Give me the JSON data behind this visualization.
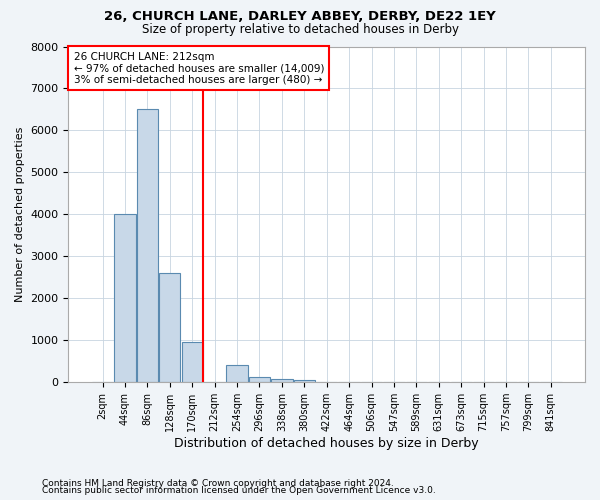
{
  "title1": "26, CHURCH LANE, DARLEY ABBEY, DERBY, DE22 1EY",
  "title2": "Size of property relative to detached houses in Derby",
  "xlabel": "Distribution of detached houses by size in Derby",
  "ylabel": "Number of detached properties",
  "categories": [
    "2sqm",
    "44sqm",
    "86sqm",
    "128sqm",
    "170sqm",
    "212sqm",
    "254sqm",
    "296sqm",
    "338sqm",
    "380sqm",
    "422sqm",
    "464sqm",
    "506sqm",
    "547sqm",
    "589sqm",
    "631sqm",
    "673sqm",
    "715sqm",
    "757sqm",
    "799sqm",
    "841sqm"
  ],
  "values": [
    5,
    4000,
    6500,
    2600,
    950,
    0,
    400,
    130,
    80,
    50,
    0,
    0,
    0,
    0,
    0,
    0,
    0,
    0,
    0,
    0,
    0
  ],
  "bar_color": "#c8d8e8",
  "bar_edge_color": "#5a8ab0",
  "reference_line_x": 4.5,
  "reference_line_color": "red",
  "annotation_line1": "26 CHURCH LANE: 212sqm",
  "annotation_line2": "← 97% of detached houses are smaller (14,009)",
  "annotation_line3": "3% of semi-detached houses are larger (480) →",
  "annotation_box_color": "red",
  "ylim": [
    0,
    8000
  ],
  "yticks": [
    0,
    1000,
    2000,
    3000,
    4000,
    5000,
    6000,
    7000,
    8000
  ],
  "footer1": "Contains HM Land Registry data © Crown copyright and database right 2024.",
  "footer2": "Contains public sector information licensed under the Open Government Licence v3.0.",
  "bg_color": "#f0f4f8",
  "plot_bg_color": "#ffffff",
  "grid_color": "#c8d4e0",
  "title1_fontsize": 9.5,
  "title2_fontsize": 8.5
}
